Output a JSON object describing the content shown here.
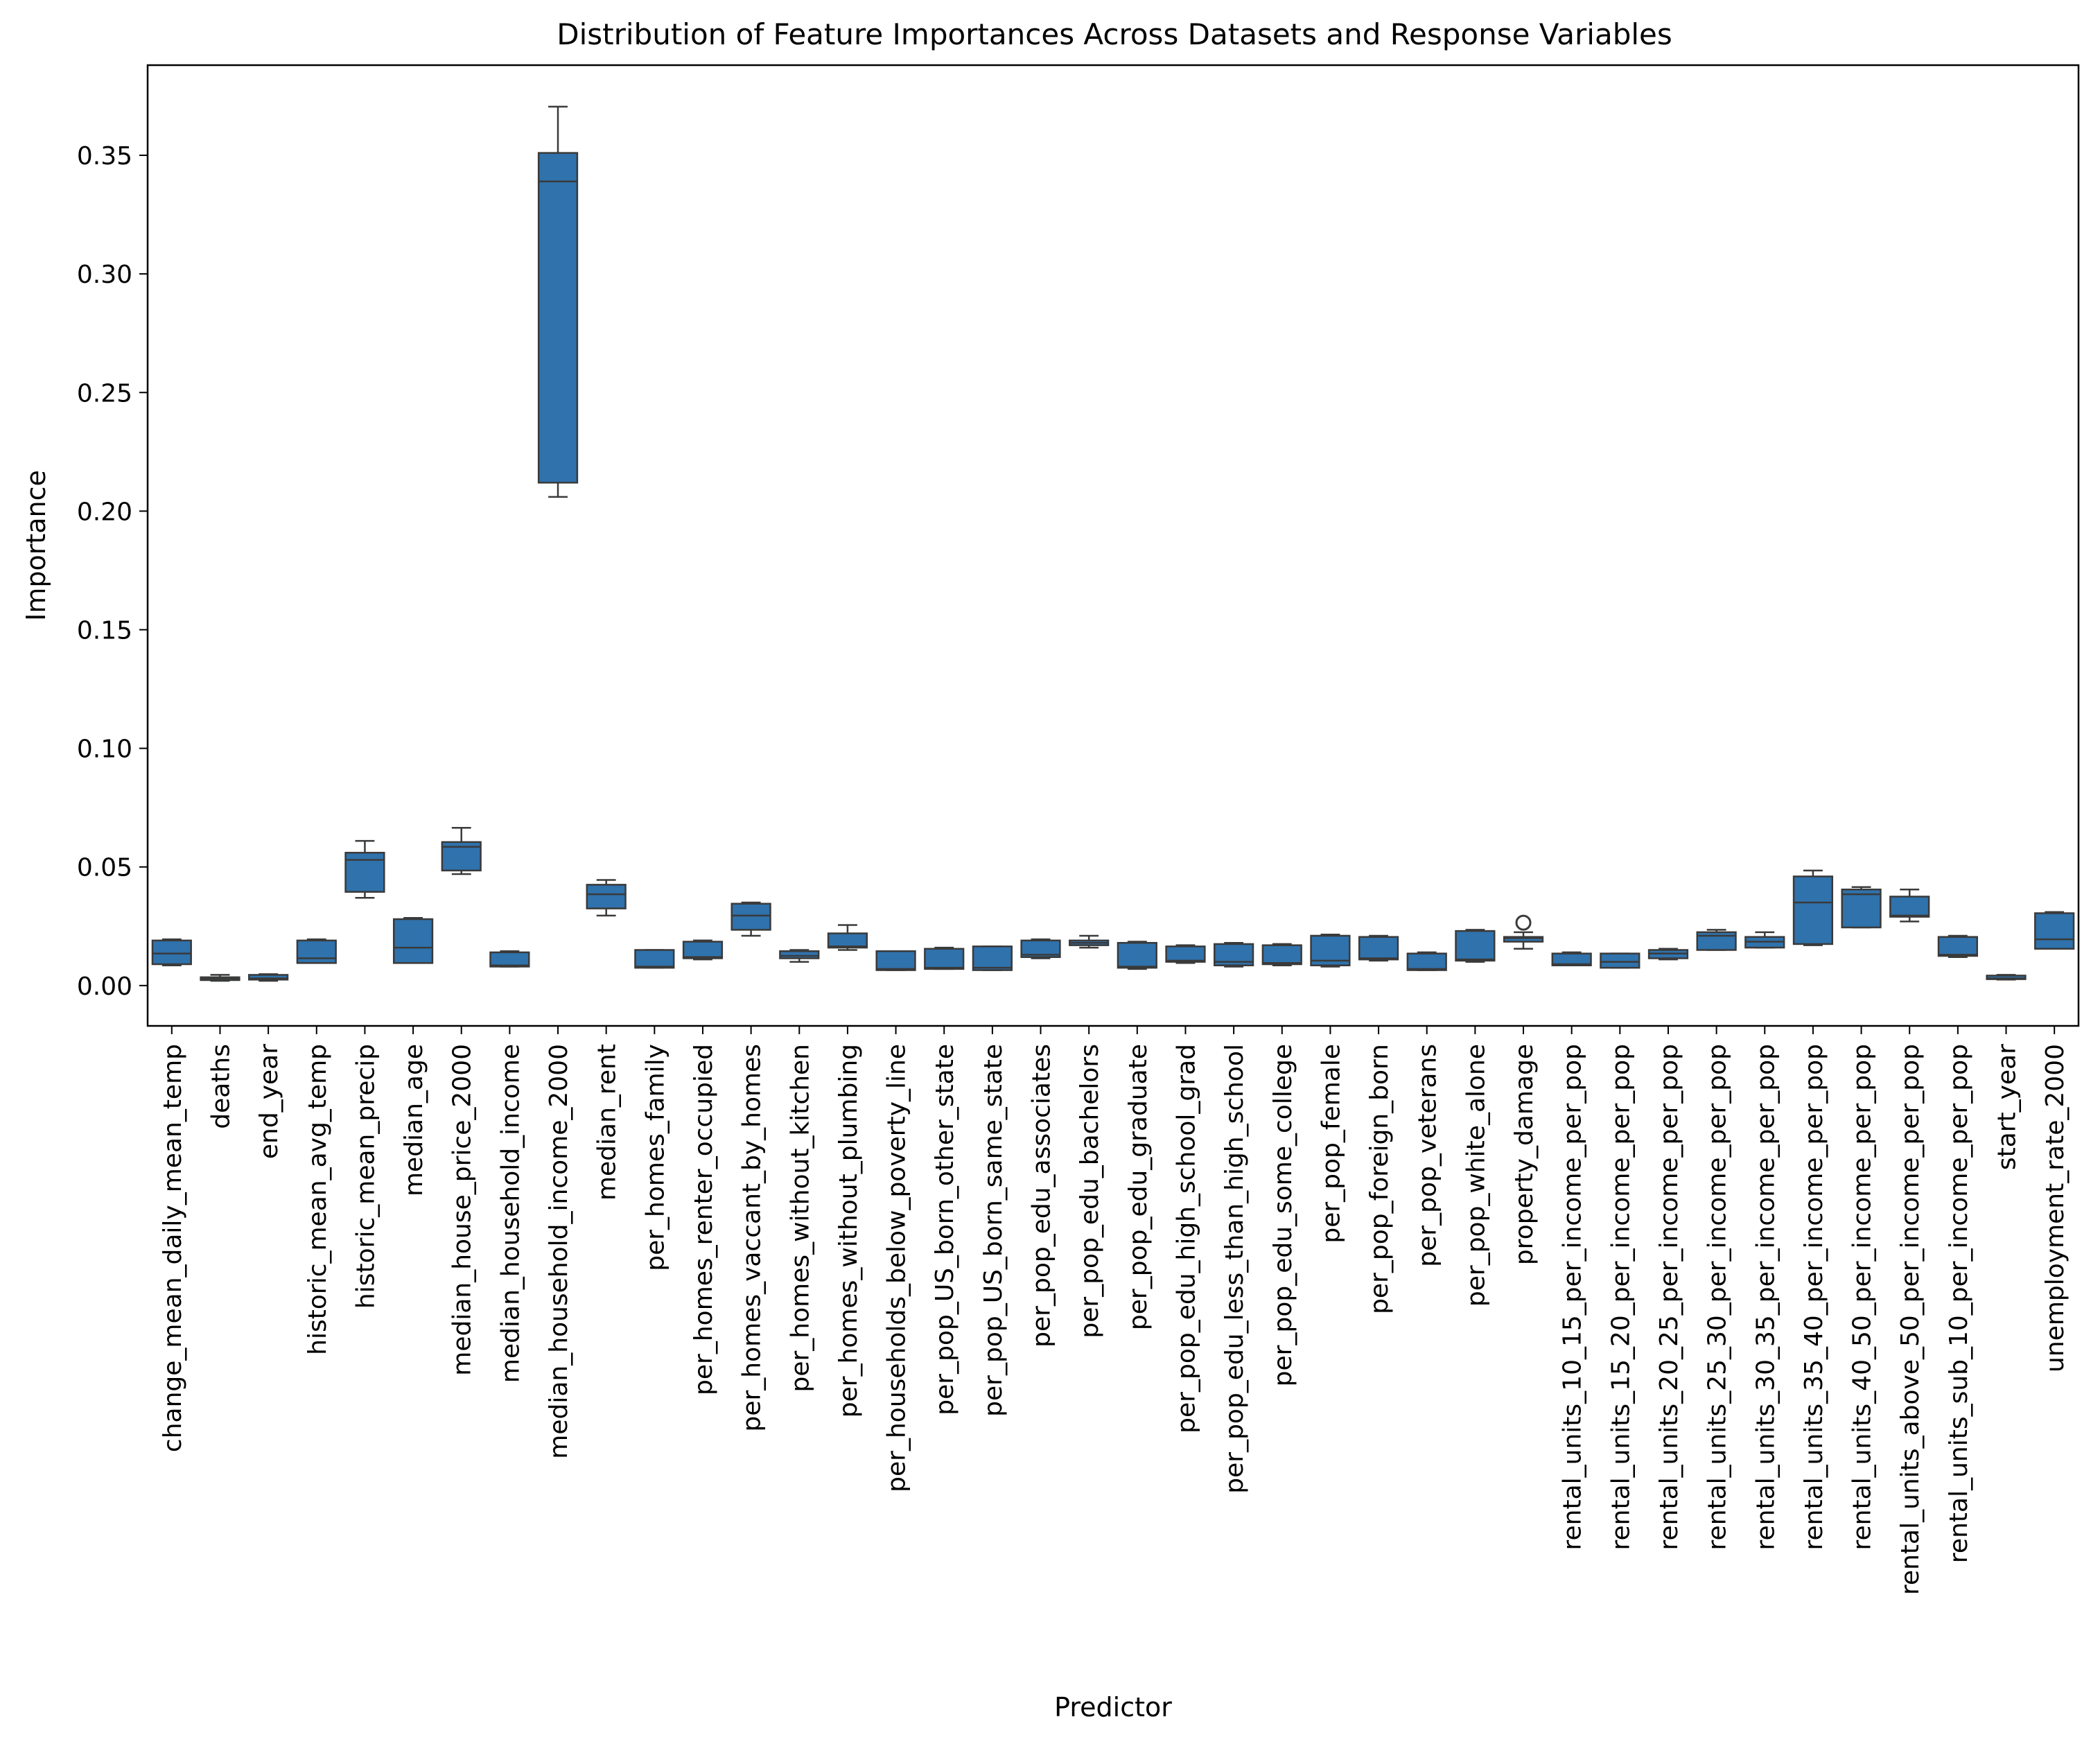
{
  "chart_data": {
    "type": "box",
    "title": "Distribution of Feature Importances Across Datasets and Response Variables",
    "xlabel": "Predictor",
    "ylabel": "Importance",
    "ylim": [
      -0.017,
      0.388
    ],
    "yticks": [
      0.0,
      0.05,
      0.1,
      0.15,
      0.2,
      0.25,
      0.3,
      0.35
    ],
    "ytick_labels": [
      "0.00",
      "0.05",
      "0.10",
      "0.15",
      "0.20",
      "0.25",
      "0.30",
      "0.35"
    ],
    "grid": false,
    "legend": "none",
    "box_color": "#2f72ac",
    "line_color": "#3a3a3a",
    "categories": [
      "change_mean_daily_mean_temp",
      "deaths",
      "end_year",
      "historic_mean_avg_temp",
      "historic_mean_precip",
      "median_age",
      "median_house_price_2000",
      "median_household_income",
      "median_household_income_2000",
      "median_rent",
      "per_homes_family",
      "per_homes_renter_occupied",
      "per_homes_vaccant_by_homes",
      "per_homes_without_kitchen",
      "per_homes_without_plumbing",
      "per_households_below_poverty_line",
      "per_pop_US_born_other_state",
      "per_pop_US_born_same_state",
      "per_pop_edu_associates",
      "per_pop_edu_bachelors",
      "per_pop_edu_graduate",
      "per_pop_edu_high_school_grad",
      "per_pop_edu_less_than_high_school",
      "per_pop_edu_some_college",
      "per_pop_female",
      "per_pop_foreign_born",
      "per_pop_veterans",
      "per_pop_white_alone",
      "property_damage",
      "rental_units_10_15_per_income_per_pop",
      "rental_units_15_20_per_income_per_pop",
      "rental_units_20_25_per_income_per_pop",
      "rental_units_25_30_per_income_per_pop",
      "rental_units_30_35_per_income_per_pop",
      "rental_units_35_40_per_income_per_pop",
      "rental_units_40_50_per_income_per_pop",
      "rental_units_above_50_per_income_per_pop",
      "rental_units_sub_10_per_income_per_pop",
      "start_year",
      "unemployment_rate_2000"
    ],
    "boxes": [
      {
        "min": 0.0085,
        "q1": 0.009,
        "median": 0.0135,
        "q3": 0.019,
        "max": 0.0195,
        "outliers": []
      },
      {
        "min": 0.002,
        "q1": 0.0023,
        "median": 0.003,
        "q3": 0.0035,
        "max": 0.0045,
        "outliers": []
      },
      {
        "min": 0.002,
        "q1": 0.0025,
        "median": 0.003,
        "q3": 0.0045,
        "max": 0.0048,
        "outliers": []
      },
      {
        "min": 0.0095,
        "q1": 0.0095,
        "median": 0.0115,
        "q3": 0.019,
        "max": 0.0195,
        "outliers": []
      },
      {
        "min": 0.037,
        "q1": 0.0395,
        "median": 0.053,
        "q3": 0.056,
        "max": 0.061,
        "outliers": []
      },
      {
        "min": 0.0095,
        "q1": 0.0095,
        "median": 0.016,
        "q3": 0.028,
        "max": 0.0285,
        "outliers": []
      },
      {
        "min": 0.047,
        "q1": 0.0485,
        "median": 0.0585,
        "q3": 0.0605,
        "max": 0.0665,
        "outliers": []
      },
      {
        "min": 0.008,
        "q1": 0.008,
        "median": 0.0085,
        "q3": 0.014,
        "max": 0.0145,
        "outliers": []
      },
      {
        "min": 0.206,
        "q1": 0.212,
        "median": 0.339,
        "q3": 0.351,
        "max": 0.3705,
        "outliers": []
      },
      {
        "min": 0.0295,
        "q1": 0.0325,
        "median": 0.0385,
        "q3": 0.0425,
        "max": 0.0445,
        "outliers": []
      },
      {
        "min": 0.0075,
        "q1": 0.0075,
        "median": 0.008,
        "q3": 0.015,
        "max": 0.015,
        "outliers": []
      },
      {
        "min": 0.011,
        "q1": 0.0115,
        "median": 0.012,
        "q3": 0.0185,
        "max": 0.019,
        "outliers": []
      },
      {
        "min": 0.021,
        "q1": 0.0235,
        "median": 0.0295,
        "q3": 0.0345,
        "max": 0.035,
        "outliers": []
      },
      {
        "min": 0.01,
        "q1": 0.0115,
        "median": 0.0125,
        "q3": 0.0145,
        "max": 0.015,
        "outliers": []
      },
      {
        "min": 0.015,
        "q1": 0.016,
        "median": 0.0165,
        "q3": 0.022,
        "max": 0.0255,
        "outliers": []
      },
      {
        "min": 0.0065,
        "q1": 0.0065,
        "median": 0.007,
        "q3": 0.0145,
        "max": 0.0145,
        "outliers": []
      },
      {
        "min": 0.007,
        "q1": 0.007,
        "median": 0.0075,
        "q3": 0.0155,
        "max": 0.016,
        "outliers": []
      },
      {
        "min": 0.0065,
        "q1": 0.0065,
        "median": 0.0075,
        "q3": 0.0165,
        "max": 0.0165,
        "outliers": []
      },
      {
        "min": 0.0115,
        "q1": 0.012,
        "median": 0.013,
        "q3": 0.019,
        "max": 0.0195,
        "outliers": []
      },
      {
        "min": 0.016,
        "q1": 0.017,
        "median": 0.018,
        "q3": 0.019,
        "max": 0.021,
        "outliers": []
      },
      {
        "min": 0.007,
        "q1": 0.0075,
        "median": 0.008,
        "q3": 0.018,
        "max": 0.0185,
        "outliers": []
      },
      {
        "min": 0.0095,
        "q1": 0.01,
        "median": 0.0105,
        "q3": 0.0165,
        "max": 0.017,
        "outliers": []
      },
      {
        "min": 0.008,
        "q1": 0.0085,
        "median": 0.01,
        "q3": 0.0175,
        "max": 0.018,
        "outliers": []
      },
      {
        "min": 0.0085,
        "q1": 0.009,
        "median": 0.0095,
        "q3": 0.017,
        "max": 0.0175,
        "outliers": []
      },
      {
        "min": 0.008,
        "q1": 0.0085,
        "median": 0.0105,
        "q3": 0.021,
        "max": 0.0215,
        "outliers": []
      },
      {
        "min": 0.0105,
        "q1": 0.011,
        "median": 0.0115,
        "q3": 0.0205,
        "max": 0.021,
        "outliers": []
      },
      {
        "min": 0.0065,
        "q1": 0.0065,
        "median": 0.007,
        "q3": 0.0135,
        "max": 0.014,
        "outliers": []
      },
      {
        "min": 0.01,
        "q1": 0.0105,
        "median": 0.011,
        "q3": 0.023,
        "max": 0.0235,
        "outliers": []
      },
      {
        "min": 0.0155,
        "q1": 0.0185,
        "median": 0.02,
        "q3": 0.0205,
        "max": 0.0225,
        "outliers": [
          0.0265
        ]
      },
      {
        "min": 0.0085,
        "q1": 0.0085,
        "median": 0.009,
        "q3": 0.0135,
        "max": 0.014,
        "outliers": []
      },
      {
        "min": 0.0075,
        "q1": 0.0075,
        "median": 0.01,
        "q3": 0.0135,
        "max": 0.0135,
        "outliers": []
      },
      {
        "min": 0.011,
        "q1": 0.0115,
        "median": 0.0135,
        "q3": 0.015,
        "max": 0.0155,
        "outliers": []
      },
      {
        "min": 0.015,
        "q1": 0.015,
        "median": 0.021,
        "q3": 0.0225,
        "max": 0.0235,
        "outliers": []
      },
      {
        "min": 0.016,
        "q1": 0.016,
        "median": 0.0185,
        "q3": 0.0205,
        "max": 0.0225,
        "outliers": []
      },
      {
        "min": 0.017,
        "q1": 0.0175,
        "median": 0.035,
        "q3": 0.046,
        "max": 0.0485,
        "outliers": []
      },
      {
        "min": 0.0245,
        "q1": 0.0245,
        "median": 0.0385,
        "q3": 0.0405,
        "max": 0.0415,
        "outliers": []
      },
      {
        "min": 0.027,
        "q1": 0.029,
        "median": 0.0295,
        "q3": 0.0375,
        "max": 0.0405,
        "outliers": []
      },
      {
        "min": 0.012,
        "q1": 0.0125,
        "median": 0.013,
        "q3": 0.0205,
        "max": 0.021,
        "outliers": []
      },
      {
        "min": 0.0025,
        "q1": 0.0027,
        "median": 0.003,
        "q3": 0.0042,
        "max": 0.0045,
        "outliers": []
      },
      {
        "min": 0.0155,
        "q1": 0.0155,
        "median": 0.0195,
        "q3": 0.0305,
        "max": 0.031,
        "outliers": []
      }
    ]
  }
}
